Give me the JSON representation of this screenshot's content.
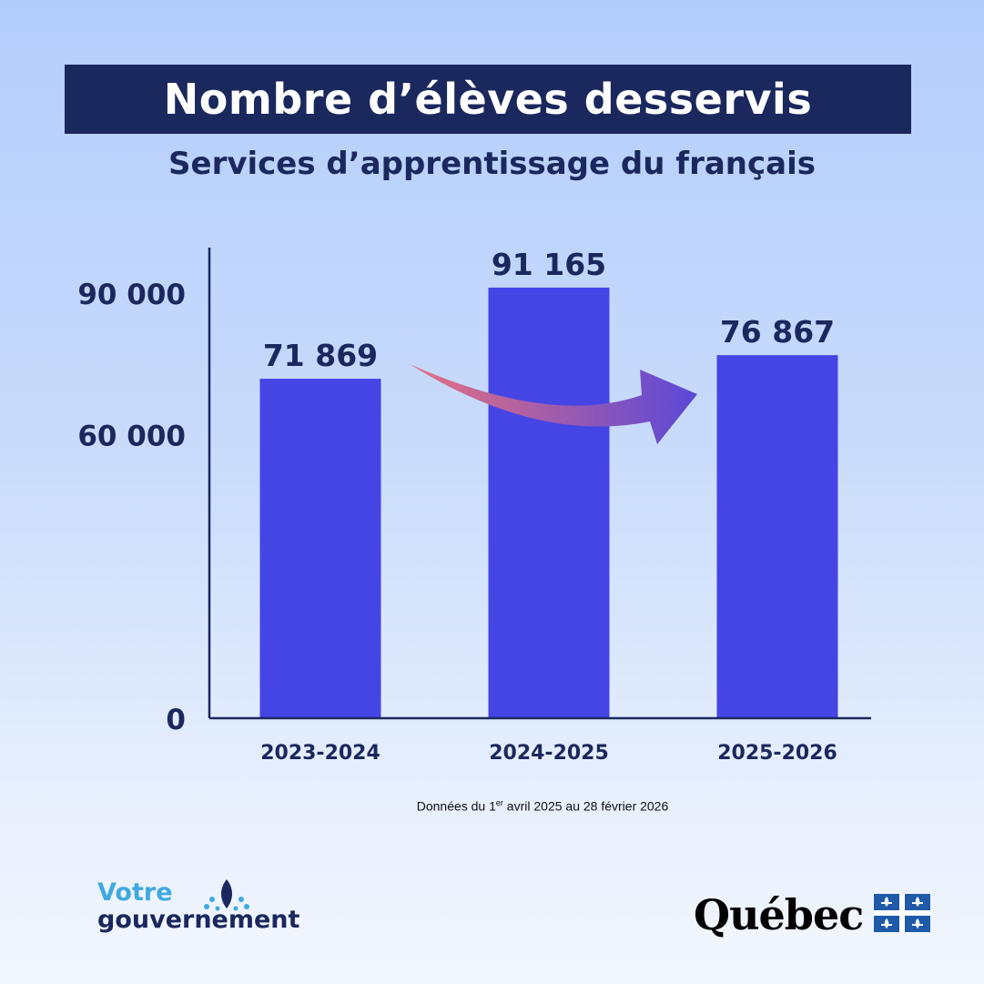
{
  "header": {
    "title": "Nombre d’élèves desservis",
    "subtitle": "Services d’apprentissage du français"
  },
  "chart_data": {
    "type": "bar",
    "title": "Nombre d’élèves desservis",
    "subtitle": "Services d’apprentissage du français",
    "categories": [
      "2023-2024",
      "2024-2025",
      "2025-2026"
    ],
    "values": [
      71869,
      91165,
      76867
    ],
    "value_labels": [
      "71 869",
      "91 165",
      "76 867"
    ],
    "yticks": [
      0,
      60000,
      90000
    ],
    "ytick_labels": [
      "0",
      "60 000",
      "90 000"
    ],
    "ylim": [
      0,
      100000
    ],
    "grid": false,
    "xlabel": "",
    "ylabel": "",
    "annotation": "curved arrow from 2023-2024 toward 2025-2026",
    "colors": {
      "bar": "#4545e6",
      "text": "#1b285d",
      "arrow_start": "#e8717f",
      "arrow_end": "#5a48d8"
    }
  },
  "footnote": {
    "prefix": "Données du 1",
    "sup": "er",
    "suffix": " avril 2025 au 28 février 2026"
  },
  "logos": {
    "votre_line1": "Votre",
    "votre_line2": "gouvernement",
    "quebec": "Québec",
    "votre_colors": {
      "light": "#3fa9e0",
      "dark": "#1b285d"
    },
    "quebec_flag_color": "#1e5aa8"
  }
}
